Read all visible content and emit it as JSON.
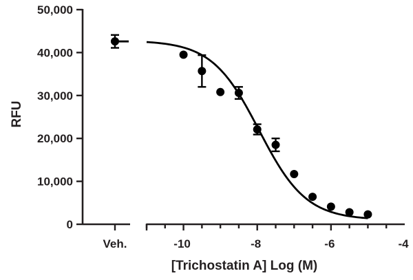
{
  "chart_data": {
    "type": "scatter",
    "xlabel": "[Trichostatin A] Log (M)",
    "ylabel": "RFU",
    "xlim": [
      -11,
      -4
    ],
    "ylim": [
      0,
      50000
    ],
    "x_ticks": [
      -10,
      -8,
      -6,
      -4
    ],
    "x_tick_labels": [
      "-10",
      "-8",
      "-6",
      "-4"
    ],
    "y_ticks": [
      0,
      10000,
      20000,
      30000,
      40000,
      50000
    ],
    "y_tick_labels": [
      "0",
      "10,000",
      "20,000",
      "30,000",
      "40,000",
      "50,000"
    ],
    "vehicle": {
      "label": "Veh.",
      "y": 42600,
      "err": 1500,
      "fit_line": true
    },
    "series": [
      {
        "points": [
          {
            "x": -10,
            "y": 39500,
            "err": 0
          },
          {
            "x": -9.5,
            "y": 35700,
            "err": 3700
          },
          {
            "x": -9,
            "y": 30800,
            "err": 0
          },
          {
            "x": -8.5,
            "y": 30600,
            "err": 1400
          },
          {
            "x": -8,
            "y": 22100,
            "err": 1200
          },
          {
            "x": -7.5,
            "y": 18500,
            "err": 1500
          },
          {
            "x": -7,
            "y": 11700,
            "err": 0
          },
          {
            "x": -6.5,
            "y": 6400,
            "err": 0
          },
          {
            "x": -6,
            "y": 4100,
            "err": 0
          },
          {
            "x": -5.5,
            "y": 2800,
            "err": 0
          },
          {
            "x": -5,
            "y": 2300,
            "err": 0
          }
        ],
        "fit": {
          "model": "four-parameter logistic",
          "top": 42800,
          "bottom": 1000,
          "log_ic50": -7.95,
          "hill_slope": 0.68,
          "x_range": [
            -11,
            -5
          ]
        }
      }
    ],
    "grid": false,
    "legend": "none"
  }
}
